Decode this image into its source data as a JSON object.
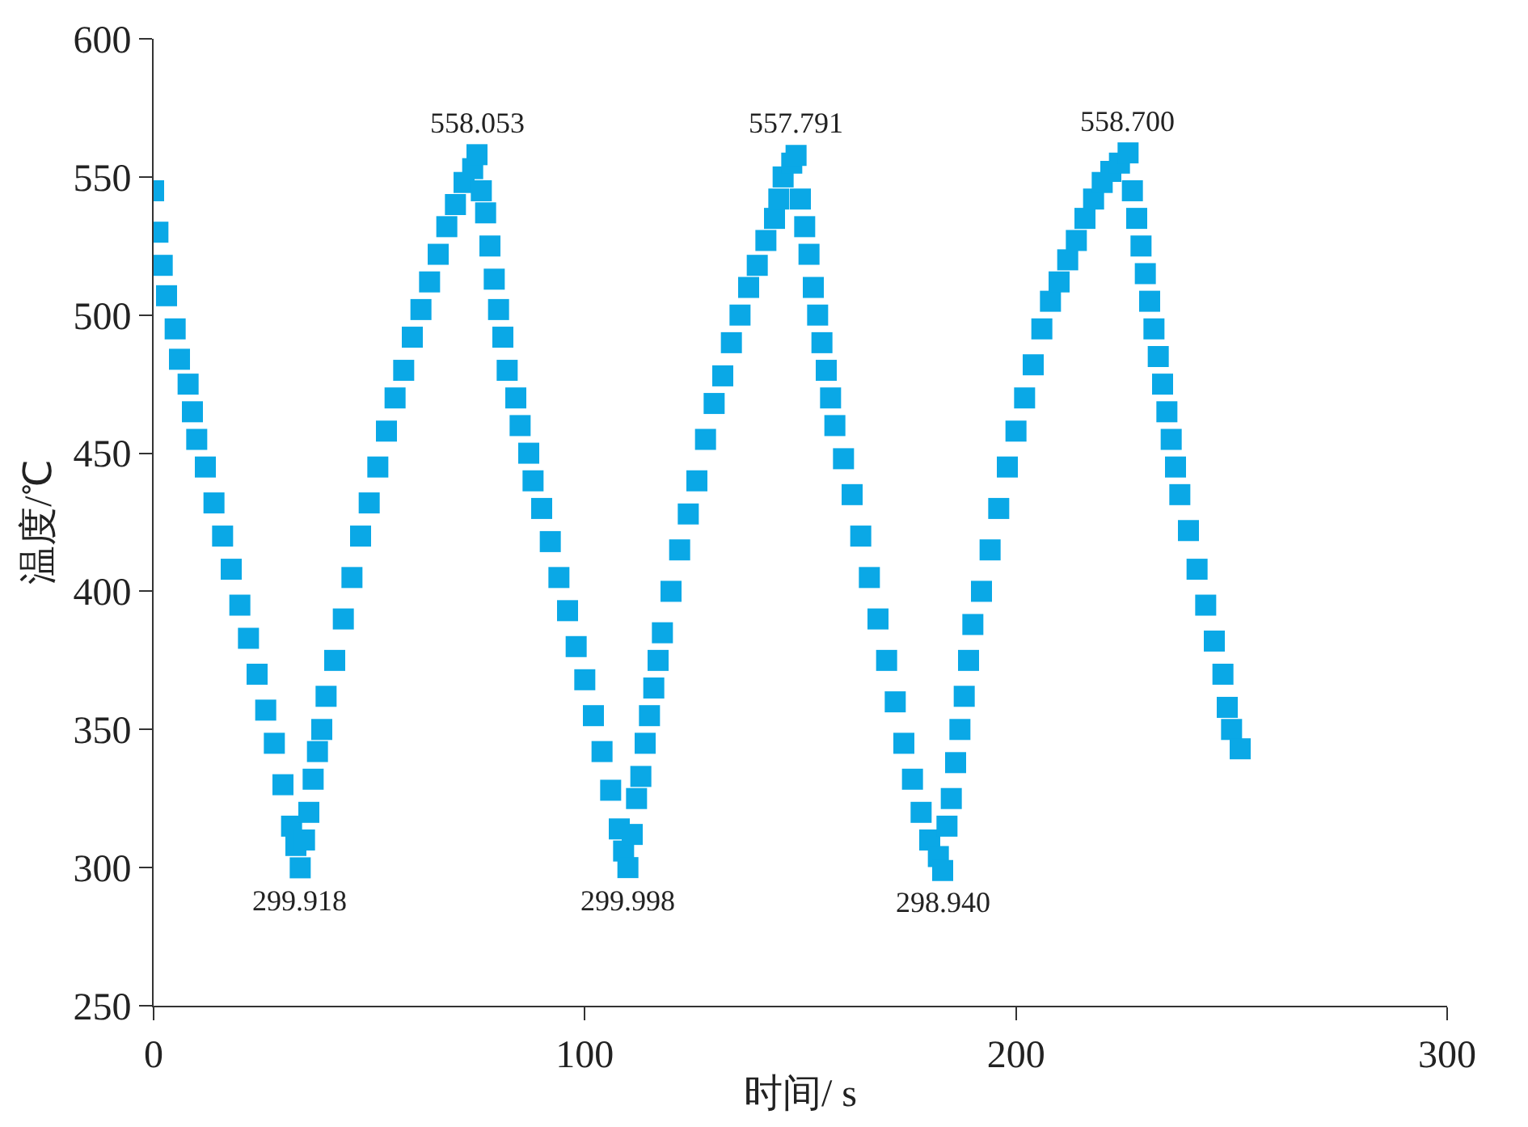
{
  "chart_data": {
    "type": "scatter",
    "xlabel": "时间/ s",
    "ylabel": "温度/℃",
    "xlim": [
      0,
      300
    ],
    "xticks": [
      0,
      100,
      200,
      300
    ],
    "ylim": [
      250,
      600
    ],
    "yticks": [
      250,
      300,
      350,
      400,
      450,
      500,
      550,
      600
    ],
    "marker": "square",
    "series": [
      {
        "color": "#0aa8e6",
        "x": [
          0,
          1,
          2,
          3,
          5,
          6,
          8,
          9,
          10,
          12,
          14,
          16,
          18,
          20,
          22,
          24,
          26,
          28,
          30,
          32,
          33,
          34,
          35,
          36,
          37,
          38,
          39,
          40,
          42,
          44,
          46,
          48,
          50,
          52,
          54,
          56,
          58,
          60,
          62,
          64,
          66,
          68,
          70,
          72,
          74,
          75,
          76,
          77,
          78,
          79,
          80,
          81,
          82,
          84,
          85,
          87,
          88,
          90,
          92,
          94,
          96,
          98,
          100,
          102,
          104,
          106,
          108,
          109,
          110,
          111,
          112,
          113,
          114,
          115,
          116,
          117,
          118,
          120,
          122,
          124,
          126,
          128,
          130,
          132,
          134,
          136,
          138,
          140,
          142,
          144,
          145,
          146,
          148,
          149,
          150,
          151,
          152,
          153,
          154,
          155,
          156,
          157,
          158,
          160,
          162,
          164,
          166,
          168,
          170,
          172,
          174,
          176,
          178,
          180,
          182,
          183,
          184,
          185,
          186,
          187,
          188,
          189,
          190,
          192,
          194,
          196,
          198,
          200,
          202,
          204,
          206,
          208,
          210,
          212,
          214,
          216,
          218,
          220,
          222,
          224,
          226,
          227,
          228,
          229,
          230,
          231,
          232,
          233,
          234,
          235,
          236,
          237,
          238,
          240,
          242,
          244,
          246,
          248,
          249,
          250,
          252
        ],
        "values": [
          545,
          530,
          518,
          507,
          495,
          484,
          475,
          465,
          455,
          445,
          432,
          420,
          408,
          395,
          383,
          370,
          357,
          345,
          330,
          315,
          308,
          299.918,
          310,
          320,
          332,
          342,
          350,
          362,
          375,
          390,
          405,
          420,
          432,
          445,
          458,
          470,
          480,
          492,
          502,
          512,
          522,
          532,
          540,
          548,
          553,
          558.053,
          545,
          537,
          525,
          513,
          502,
          492,
          480,
          470,
          460,
          450,
          440,
          430,
          418,
          405,
          393,
          380,
          368,
          355,
          342,
          328,
          314,
          306,
          299.998,
          312,
          325,
          333,
          345,
          355,
          365,
          375,
          385,
          400,
          415,
          428,
          440,
          455,
          468,
          478,
          490,
          500,
          510,
          518,
          527,
          535,
          542,
          550,
          555,
          557.791,
          542,
          532,
          522,
          510,
          500,
          490,
          480,
          470,
          460,
          448,
          435,
          420,
          405,
          390,
          375,
          360,
          345,
          332,
          320,
          310,
          304,
          298.94,
          315,
          325,
          338,
          350,
          362,
          375,
          388,
          400,
          415,
          430,
          445,
          458,
          470,
          482,
          495,
          505,
          512,
          520,
          527,
          535,
          542,
          548,
          552,
          555,
          558.7,
          545,
          535,
          525,
          515,
          505,
          495,
          485,
          475,
          465,
          455,
          445,
          435,
          422,
          408,
          395,
          382,
          370,
          358,
          350,
          343
        ]
      }
    ],
    "annotations": [
      {
        "text": "299.918",
        "x": 34,
        "y": 299.918
      },
      {
        "text": "558.053",
        "x": 75,
        "y": 558.053
      },
      {
        "text": "299.998",
        "x": 110,
        "y": 299.998
      },
      {
        "text": "557.791",
        "x": 149,
        "y": 557.791
      },
      {
        "text": "298.940",
        "x": 183,
        "y": 298.94
      },
      {
        "text": "558.700",
        "x": 226,
        "y": 558.7
      }
    ]
  }
}
